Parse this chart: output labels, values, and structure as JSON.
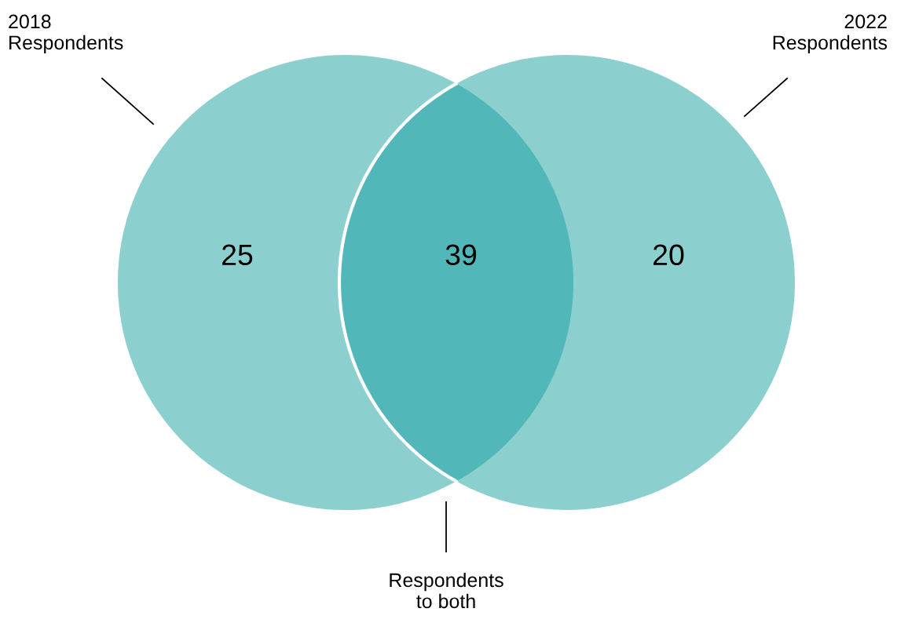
{
  "chart_data": {
    "type": "other",
    "categories": [
      "2018 Respondents",
      "Respondents to both",
      "2022 Respondents"
    ],
    "values": [
      25,
      39,
      20
    ],
    "colors": [
      "#8ccfcf",
      "#52b7b9",
      "#8ccfcf"
    ],
    "data_labels": true
  }
}
